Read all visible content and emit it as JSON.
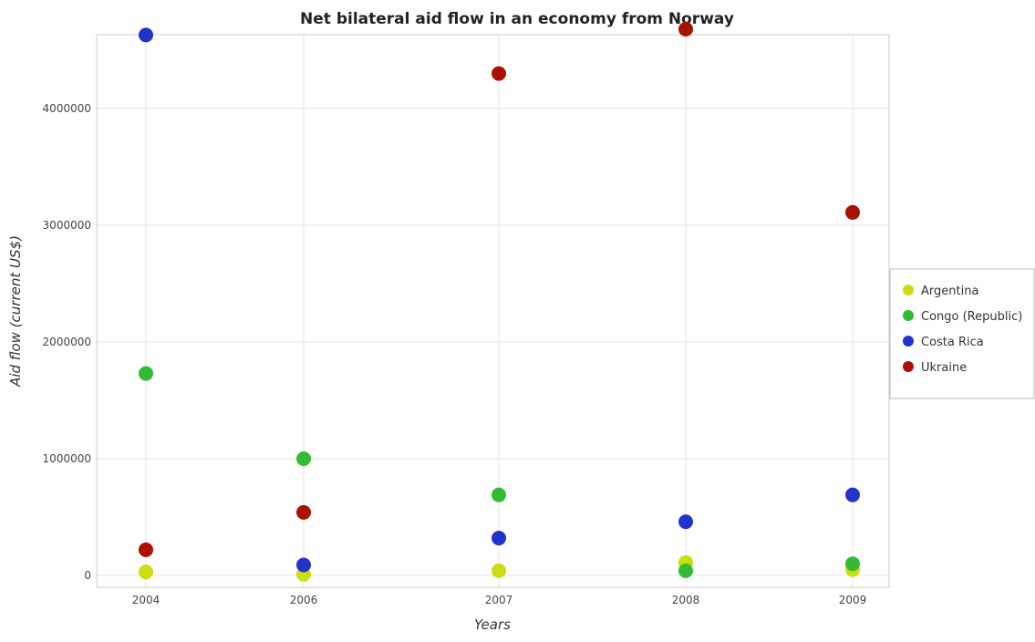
{
  "chart_data": {
    "type": "scatter",
    "title": "Net bilateral aid flow in an economy from Norway",
    "xlabel": "Years",
    "ylabel": "Aid flow (current US$)",
    "categories": [
      "2004",
      "2006",
      "2007",
      "2008",
      "2009"
    ],
    "ylim": [
      0,
      4900000
    ],
    "yticks": [
      0,
      1000000,
      2000000,
      3000000,
      4000000
    ],
    "ytick_labels": [
      "0",
      "1000000",
      "2000000",
      "3000000",
      "4000000"
    ],
    "grid": true,
    "legend_position": "right",
    "series": [
      {
        "name": "Argentina",
        "color": "#ccdd11",
        "values": [
          30000,
          10000,
          40000,
          110000,
          50000
        ]
      },
      {
        "name": "Congo (Republic)",
        "color": "#33bb33",
        "values": [
          1730000,
          1000000,
          690000,
          40000,
          100000
        ]
      },
      {
        "name": "Costa Rica",
        "color": "#2233cc",
        "values": [
          4630000,
          90000,
          320000,
          460000,
          690000
        ]
      },
      {
        "name": "Ukraine",
        "color": "#aa1100",
        "values": [
          220000,
          540000,
          4300000,
          4680000,
          3110000
        ]
      }
    ]
  }
}
